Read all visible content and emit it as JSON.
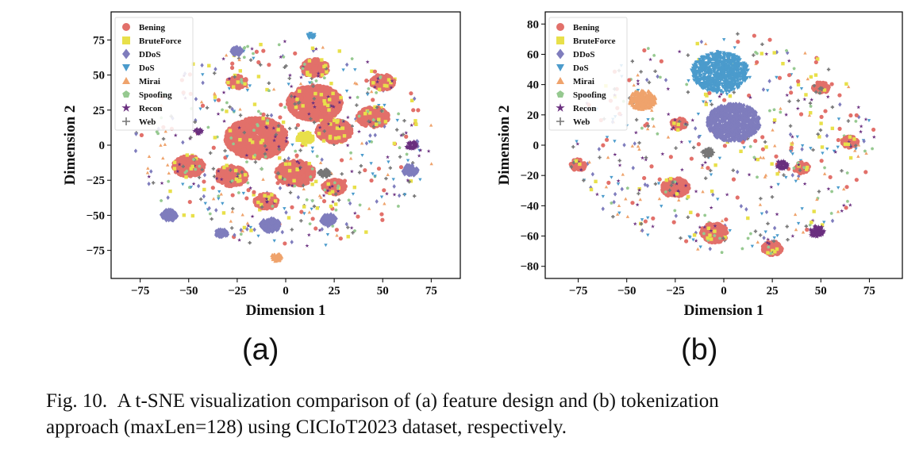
{
  "figure": {
    "label": "Fig. 10.",
    "caption_line1": "A t-SNE visualization comparison of (a) feature design and (b) tokenization",
    "caption_line2": "approach (maxLen=128) using CICIoT2023 dataset, respectively."
  },
  "legend_items": [
    {
      "label": "Bening",
      "marker": "circle",
      "color": "#e2706a"
    },
    {
      "label": "BruteForce",
      "marker": "square",
      "color": "#e8e04a"
    },
    {
      "label": "DDoS",
      "marker": "diamond",
      "color": "#7f7dbd"
    },
    {
      "label": "DoS",
      "marker": "triangle-down",
      "color": "#4b9bcc"
    },
    {
      "label": "Mirai",
      "marker": "triangle-up",
      "color": "#efa36c"
    },
    {
      "label": "Spoofing",
      "marker": "pentagon",
      "color": "#96c990"
    },
    {
      "label": "Recon",
      "marker": "star",
      "color": "#6a2f7f"
    },
    {
      "label": "Web",
      "marker": "plus",
      "color": "#777777"
    }
  ],
  "chart_data": [
    {
      "type": "scatter",
      "panel_label": "(a)",
      "xlabel": "Dimension 1",
      "ylabel": "Dimension 2",
      "xlim": [
        -90,
        90
      ],
      "ylim": [
        -95,
        95
      ],
      "xticks": [
        -75,
        -50,
        -25,
        0,
        25,
        50,
        75
      ],
      "yticks": [
        -75,
        -50,
        -25,
        0,
        25,
        50,
        75
      ],
      "legend": "top-left",
      "grid": false,
      "clusters": [
        {
          "series": "Bening",
          "x": -15,
          "y": 5,
          "r": 16
        },
        {
          "series": "Bening",
          "x": 15,
          "y": 30,
          "r": 14
        },
        {
          "series": "Bening",
          "x": 25,
          "y": 10,
          "r": 9
        },
        {
          "series": "Bening",
          "x": 15,
          "y": 55,
          "r": 7
        },
        {
          "series": "Bening",
          "x": 45,
          "y": 20,
          "r": 8
        },
        {
          "series": "Bening",
          "x": 50,
          "y": 45,
          "r": 6
        },
        {
          "series": "Bening",
          "x": -50,
          "y": -15,
          "r": 8
        },
        {
          "series": "Bening",
          "x": -28,
          "y": -22,
          "r": 8
        },
        {
          "series": "Bening",
          "x": 5,
          "y": -20,
          "r": 10
        },
        {
          "series": "Bening",
          "x": 25,
          "y": -30,
          "r": 6
        },
        {
          "series": "Bening",
          "x": -25,
          "y": 45,
          "r": 5
        },
        {
          "series": "Bening",
          "x": -10,
          "y": -40,
          "r": 6
        },
        {
          "series": "DDoS",
          "x": -60,
          "y": -50,
          "r": 4
        },
        {
          "series": "DDoS",
          "x": -33,
          "y": -63,
          "r": 3
        },
        {
          "series": "DDoS",
          "x": -8,
          "y": -57,
          "r": 5
        },
        {
          "series": "DDoS",
          "x": 22,
          "y": -53,
          "r": 4
        },
        {
          "series": "DDoS",
          "x": 64,
          "y": -18,
          "r": 4
        },
        {
          "series": "DDoS",
          "x": -25,
          "y": 67,
          "r": 3
        },
        {
          "series": "DoS",
          "x": 13,
          "y": 78,
          "r": 2
        },
        {
          "series": "Mirai",
          "x": -5,
          "y": -80,
          "r": 3
        },
        {
          "series": "Recon",
          "x": -45,
          "y": 10,
          "r": 2
        },
        {
          "series": "Recon",
          "x": 65,
          "y": 0,
          "r": 3
        },
        {
          "series": "Web",
          "x": 20,
          "y": -20,
          "r": 3
        },
        {
          "series": "BruteForce",
          "x": 10,
          "y": 5,
          "r": 4
        }
      ]
    },
    {
      "type": "scatter",
      "panel_label": "(b)",
      "xlabel": "Dimension 1",
      "ylabel": "Dimension 2",
      "xlim": [
        -92,
        92
      ],
      "ylim": [
        -88,
        88
      ],
      "xticks": [
        -75,
        -50,
        -25,
        0,
        25,
        50,
        75
      ],
      "yticks": [
        -80,
        -60,
        -40,
        -20,
        0,
        20,
        40,
        60,
        80
      ],
      "legend": "top-left",
      "grid": false,
      "clusters": [
        {
          "series": "DoS",
          "x": -2,
          "y": 48,
          "r": 14
        },
        {
          "series": "DDoS",
          "x": 5,
          "y": 15,
          "r": 13
        },
        {
          "series": "Mirai",
          "x": -42,
          "y": 30,
          "r": 7
        },
        {
          "series": "Bening",
          "x": -25,
          "y": -28,
          "r": 7
        },
        {
          "series": "Bening",
          "x": -5,
          "y": -58,
          "r": 7
        },
        {
          "series": "Bening",
          "x": 25,
          "y": -68,
          "r": 5
        },
        {
          "series": "Bening",
          "x": -75,
          "y": -13,
          "r": 4
        },
        {
          "series": "Bening",
          "x": 50,
          "y": 38,
          "r": 4
        },
        {
          "series": "Bening",
          "x": 65,
          "y": 2,
          "r": 4
        },
        {
          "series": "Bening",
          "x": -23,
          "y": 14,
          "r": 4
        },
        {
          "series": "Bening",
          "x": 40,
          "y": -15,
          "r": 4
        },
        {
          "series": "Recon",
          "x": 48,
          "y": -57,
          "r": 4
        },
        {
          "series": "Recon",
          "x": 30,
          "y": -13,
          "r": 3
        },
        {
          "series": "Web",
          "x": -8,
          "y": -5,
          "r": 3
        }
      ]
    }
  ]
}
